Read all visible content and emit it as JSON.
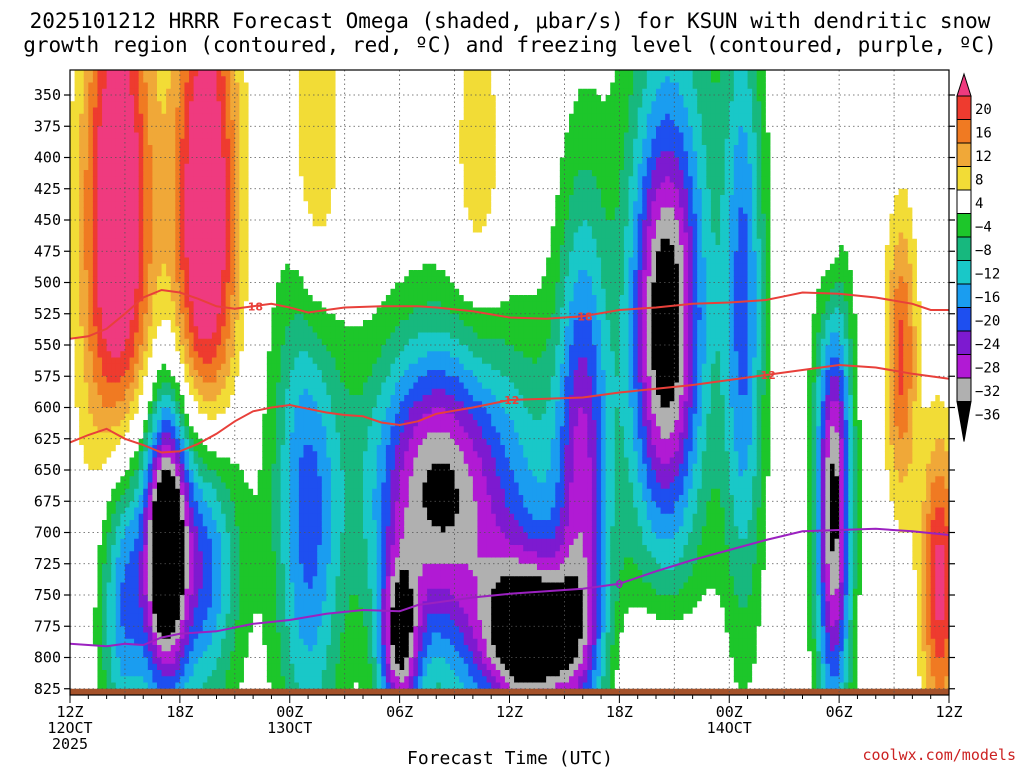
{
  "chart_data": {
    "type": "heatmap",
    "title_line1": "2025101212 HRRR Forecast Omega (shaded, μbar/s) for KSUN with dendritic snow",
    "title_line2": "growth region (contoured, red, ºC) and freezing level (contoured, purple, ºC)",
    "xlabel": "Forecast Time (UTC)",
    "credit": "coolwx.com/models",
    "hour_range": [
      0,
      48
    ],
    "pressure_range": [
      330,
      830
    ],
    "y_ticks": [
      350,
      375,
      400,
      425,
      450,
      475,
      500,
      525,
      550,
      575,
      600,
      625,
      650,
      675,
      700,
      725,
      750,
      775,
      800,
      825
    ],
    "x_ticks": [
      {
        "hour": 0,
        "line1": "12Z",
        "line2": "12OCT",
        "line3": "2025"
      },
      {
        "hour": 6,
        "line1": "18Z",
        "line2": "",
        "line3": ""
      },
      {
        "hour": 12,
        "line1": "00Z",
        "line2": "13OCT",
        "line3": ""
      },
      {
        "hour": 18,
        "line1": "06Z",
        "line2": "",
        "line3": ""
      },
      {
        "hour": 24,
        "line1": "12Z",
        "line2": "",
        "line3": ""
      },
      {
        "hour": 30,
        "line1": "18Z",
        "line2": "",
        "line3": ""
      },
      {
        "hour": 36,
        "line1": "00Z",
        "line2": "14OCT",
        "line3": ""
      },
      {
        "hour": 42,
        "line1": "06Z",
        "line2": "",
        "line3": ""
      },
      {
        "hour": 48,
        "line1": "12Z",
        "line2": "",
        "line3": ""
      }
    ],
    "colorbar": {
      "labels": [
        "20",
        "16",
        "12",
        "8",
        "4",
        "−4",
        "−8",
        "−12",
        "−16",
        "−20",
        "−24",
        "−28",
        "−32",
        "−36"
      ],
      "bins": [
        {
          "lo": 20,
          "color": "#ef3a7f"
        },
        {
          "lo": 16,
          "color": "#ee3b2f"
        },
        {
          "lo": 12,
          "color": "#f07a22"
        },
        {
          "lo": 8,
          "color": "#f0a838"
        },
        {
          "lo": 4,
          "color": "#f2dc36"
        },
        {
          "lo": -4,
          "color": "#ffffff"
        },
        {
          "lo": -8,
          "color": "#1dc62a"
        },
        {
          "lo": -12,
          "color": "#17b87e"
        },
        {
          "lo": -16,
          "color": "#19c8c8"
        },
        {
          "lo": -20,
          "color": "#1a9df0"
        },
        {
          "lo": -24,
          "color": "#1e4ff0"
        },
        {
          "lo": -28,
          "color": "#7d1ad0"
        },
        {
          "lo": -32,
          "color": "#b11ad4"
        },
        {
          "lo": -36,
          "color": "#b0b0b0"
        },
        {
          "lo": -99,
          "color": "#000000"
        }
      ]
    },
    "omega_features": [
      {
        "h": 2.6,
        "p": 450,
        "sh": 1.3,
        "sp": 150,
        "a": 30
      },
      {
        "h": 7.4,
        "p": 460,
        "sh": 1.2,
        "sp": 160,
        "a": 30
      },
      {
        "h": 13.4,
        "p": 420,
        "sh": 1.0,
        "sp": 110,
        "a": 12
      },
      {
        "h": 22.3,
        "p": 410,
        "sh": 1.0,
        "sp": 100,
        "a": 7
      },
      {
        "h": 45.4,
        "p": 560,
        "sh": 0.6,
        "sp": 80,
        "a": 17
      },
      {
        "h": 47.5,
        "p": 740,
        "sh": 0.7,
        "sp": 80,
        "a": 22
      },
      {
        "h": 41.5,
        "p": 450,
        "sh": 0.5,
        "sp": 80,
        "a": 7
      },
      {
        "h": 32,
        "p": 800,
        "sh": 2.0,
        "sp": 35,
        "a": 6
      },
      {
        "h": 5.2,
        "p": 712,
        "sh": 0.8,
        "sp": 80,
        "a": -42
      },
      {
        "h": 7.2,
        "p": 710,
        "sh": 1.4,
        "sp": 90,
        "a": -30
      },
      {
        "h": 3.0,
        "p": 740,
        "sh": 1.0,
        "sp": 90,
        "a": -24
      },
      {
        "h": 13.0,
        "p": 670,
        "sh": 1.3,
        "sp": 150,
        "a": -22
      },
      {
        "h": 18.0,
        "p": 790,
        "sh": 0.8,
        "sp": 50,
        "a": -30
      },
      {
        "h": 19.6,
        "p": 660,
        "sh": 2.4,
        "sp": 80,
        "a": -26
      },
      {
        "h": 25.3,
        "p": 785,
        "sh": 2.0,
        "sp": 45,
        "a": -38
      },
      {
        "h": 28.0,
        "p": 640,
        "sh": 1.0,
        "sp": 150,
        "a": -24
      },
      {
        "h": 32.5,
        "p": 540,
        "sh": 1.3,
        "sp": 110,
        "a": -31
      },
      {
        "h": 41.7,
        "p": 680,
        "sh": 0.7,
        "sp": 120,
        "a": -38
      },
      {
        "h": 36.8,
        "p": 520,
        "sh": 0.8,
        "sp": 170,
        "a": -20
      },
      {
        "h": 23.0,
        "p": 700,
        "sh": 3.5,
        "sp": 110,
        "a": -18
      },
      {
        "h": 33.0,
        "p": 450,
        "sh": 2.0,
        "sp": 220,
        "a": -12
      }
    ],
    "dgz_top": {
      "label": "-18",
      "points": [
        [
          0,
          545
        ],
        [
          1,
          543
        ],
        [
          2,
          537
        ],
        [
          3,
          525
        ],
        [
          4,
          512
        ],
        [
          5,
          506
        ],
        [
          6,
          508
        ],
        [
          7,
          513
        ],
        [
          8,
          519
        ],
        [
          9,
          521
        ],
        [
          10,
          519
        ],
        [
          11,
          517
        ],
        [
          12,
          520
        ],
        [
          13,
          524
        ],
        [
          14,
          522
        ],
        [
          15,
          520
        ],
        [
          17,
          519
        ],
        [
          19,
          519
        ],
        [
          20,
          520
        ],
        [
          22,
          523
        ],
        [
          24,
          528
        ],
        [
          26,
          529
        ],
        [
          28,
          527
        ],
        [
          30,
          522
        ],
        [
          32,
          520
        ],
        [
          34,
          517
        ],
        [
          36,
          516
        ],
        [
          38,
          514
        ],
        [
          39,
          511
        ],
        [
          40,
          508
        ],
        [
          42,
          509
        ],
        [
          44,
          512
        ],
        [
          46,
          517
        ],
        [
          47,
          522
        ],
        [
          48,
          522
        ]
      ]
    },
    "dgz_bottom": {
      "label": "-12",
      "points": [
        [
          0,
          628
        ],
        [
          1,
          622
        ],
        [
          2,
          617
        ],
        [
          3,
          625
        ],
        [
          4,
          630
        ],
        [
          5,
          636
        ],
        [
          6,
          635
        ],
        [
          7,
          629
        ],
        [
          8,
          621
        ],
        [
          9,
          611
        ],
        [
          10,
          603
        ],
        [
          11,
          600
        ],
        [
          12,
          598
        ],
        [
          13,
          601
        ],
        [
          14,
          604
        ],
        [
          15,
          606
        ],
        [
          16,
          607
        ],
        [
          17,
          612
        ],
        [
          18,
          614
        ],
        [
          19,
          611
        ],
        [
          20,
          605
        ],
        [
          22,
          600
        ],
        [
          24,
          594
        ],
        [
          26,
          593
        ],
        [
          28,
          592
        ],
        [
          30,
          588
        ],
        [
          32,
          585
        ],
        [
          34,
          582
        ],
        [
          36,
          578
        ],
        [
          38,
          574
        ],
        [
          40,
          570
        ],
        [
          42,
          566
        ],
        [
          44,
          568
        ],
        [
          46,
          573
        ],
        [
          48,
          577
        ]
      ]
    },
    "freezing_level": {
      "label": "0",
      "points": [
        [
          0,
          789
        ],
        [
          1,
          790
        ],
        [
          2,
          791
        ],
        [
          3,
          789
        ],
        [
          4,
          790
        ],
        [
          5,
          784
        ],
        [
          6,
          781
        ],
        [
          8,
          779
        ],
        [
          10,
          773
        ],
        [
          12,
          770
        ],
        [
          14,
          765
        ],
        [
          16,
          762
        ],
        [
          18,
          763
        ],
        [
          19,
          758
        ],
        [
          20,
          756
        ],
        [
          22,
          752
        ],
        [
          24,
          749
        ],
        [
          26,
          747
        ],
        [
          28,
          745
        ],
        [
          30,
          741
        ],
        [
          32,
          731
        ],
        [
          34,
          722
        ],
        [
          36,
          714
        ],
        [
          38,
          706
        ],
        [
          40,
          699
        ],
        [
          42,
          698
        ],
        [
          44,
          697
        ],
        [
          46,
          699
        ],
        [
          48,
          702
        ]
      ]
    },
    "surface_band": {
      "color": "#a5522a",
      "p_top": 825
    }
  }
}
